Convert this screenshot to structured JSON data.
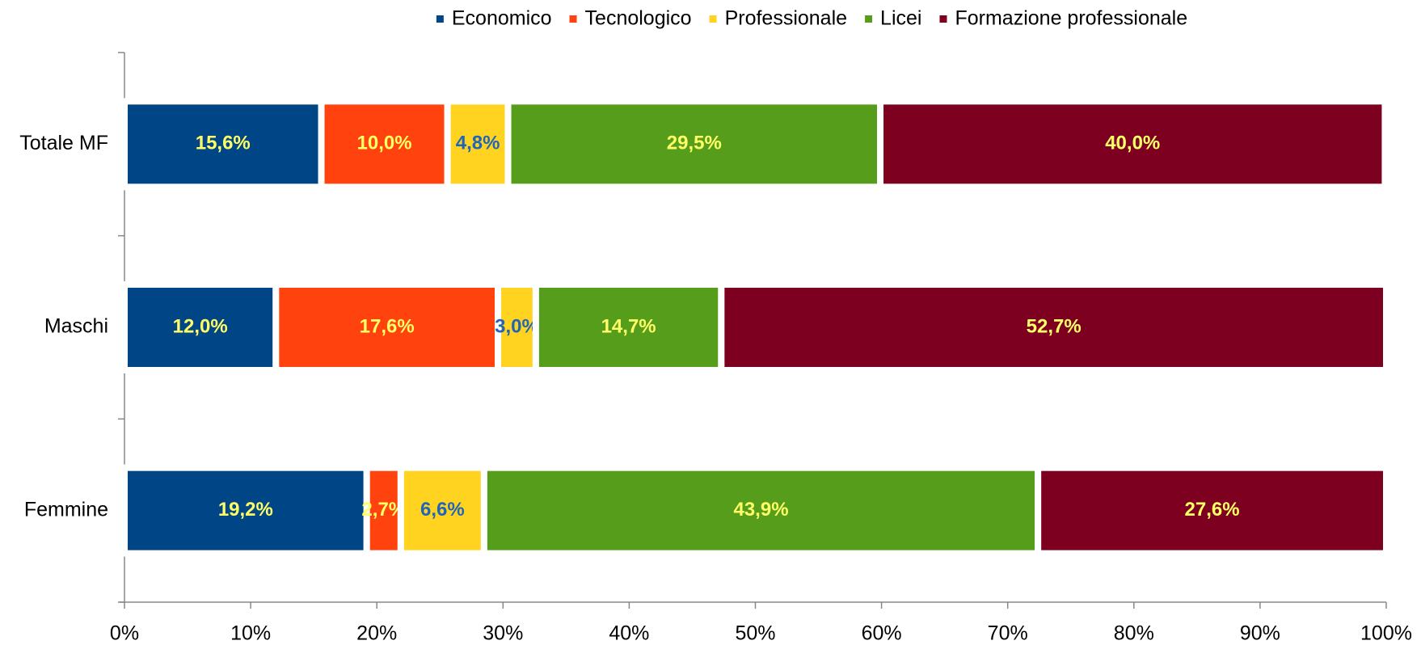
{
  "chart_data": {
    "type": "stacked_bar_horizontal",
    "categories": [
      "Totale MF",
      "Maschi",
      "Femmine"
    ],
    "series": [
      {
        "name": "Economico",
        "color": "#004586",
        "label_color": "#ffff66",
        "values": [
          15.6,
          12.0,
          19.2
        ],
        "value_labels": [
          "15,6%",
          "12,0%",
          "19,2%"
        ]
      },
      {
        "name": "Tecnologico",
        "color": "#ff420e",
        "label_color": "#ffff66",
        "values": [
          10.0,
          17.6,
          2.7
        ],
        "value_labels": [
          "10,0%",
          "17,6%",
          "2,7%"
        ]
      },
      {
        "name": "Professionale",
        "color": "#ffd320",
        "label_color": "#1f66b8",
        "values": [
          4.8,
          3.0,
          6.6
        ],
        "value_labels": [
          "4,8%",
          "3,0%",
          "6,6%"
        ]
      },
      {
        "name": "Licei",
        "color": "#579d1c",
        "label_color": "#ffff66",
        "values": [
          29.5,
          14.7,
          43.9
        ],
        "value_labels": [
          "29,5%",
          "14,7%",
          "43,9%"
        ]
      },
      {
        "name": "Formazione professionale",
        "color": "#7e0021",
        "label_color": "#ffff66",
        "values": [
          40.0,
          52.7,
          27.6
        ],
        "value_labels": [
          "40,0%",
          "52,7%",
          "27,6%"
        ]
      }
    ],
    "xlim": [
      0,
      100
    ],
    "xticks": [
      {
        "value": 0,
        "label": "0%"
      },
      {
        "value": 10,
        "label": "10%"
      },
      {
        "value": 20,
        "label": "20%"
      },
      {
        "value": 30,
        "label": "30%"
      },
      {
        "value": 40,
        "label": "40%"
      },
      {
        "value": 50,
        "label": "50%"
      },
      {
        "value": 60,
        "label": "60%"
      },
      {
        "value": 70,
        "label": "70%"
      },
      {
        "value": 80,
        "label": "80%"
      },
      {
        "value": 90,
        "label": "90%"
      },
      {
        "value": 100,
        "label": "100%"
      }
    ],
    "legend": "top"
  }
}
